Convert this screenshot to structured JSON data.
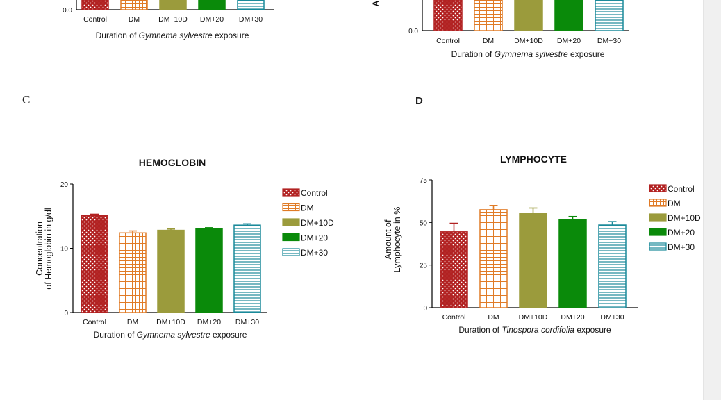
{
  "panels": {
    "c_label": "C",
    "d_label": "D"
  },
  "chart_data": [
    {
      "id": "top-left",
      "type": "bar",
      "title": "",
      "xlabel": "Duration of ",
      "xlabel_italic": "Gymnema sylvestre",
      "xlabel_suffix": " exposure",
      "ylabel": "",
      "ylim": [
        0,
        null
      ],
      "yticks": [
        "0.0"
      ],
      "categories": [
        "Control",
        "DM",
        "DM+10D",
        "DM+20",
        "DM+30"
      ],
      "values": [
        null,
        null,
        null,
        null,
        null
      ]
    },
    {
      "id": "top-right",
      "type": "bar",
      "title": "",
      "xlabel": "Duration of ",
      "xlabel_italic": "Gymnema sylvestre",
      "xlabel_suffix": " exposure",
      "ylabel": "A",
      "yticks": [
        "0.0"
      ],
      "categories": [
        "Control",
        "DM",
        "DM+10D",
        "DM+20",
        "DM+30"
      ],
      "values": [
        null,
        null,
        null,
        null,
        null
      ]
    },
    {
      "id": "hemoglobin",
      "type": "bar",
      "title": "HEMOGLOBIN",
      "xlabel": "Duration of ",
      "xlabel_italic": "Gymnema sylvestre",
      "xlabel_suffix": " exposure",
      "ylabel": "Concentration of Hemoglobin in g/dl",
      "ylim": [
        0,
        20
      ],
      "yticks": [
        "0",
        "10",
        "20"
      ],
      "categories": [
        "Control",
        "DM",
        "DM+10D",
        "DM+20",
        "DM+30"
      ],
      "values": [
        15.1,
        12.4,
        12.8,
        13.0,
        13.6
      ],
      "errors": [
        0.2,
        0.3,
        0.2,
        0.2,
        0.2
      ],
      "legend": [
        "Control",
        "DM",
        "DM+10D",
        "DM+20",
        "DM+30"
      ]
    },
    {
      "id": "lymphocyte",
      "type": "bar",
      "title": "LYMPHOCYTE",
      "xlabel": "Duration of ",
      "xlabel_italic": "Tinospora cordifolia",
      "xlabel_suffix": " exposure",
      "ylabel": "Amount of Lymphocyte in %",
      "ylim": [
        0,
        75
      ],
      "yticks": [
        "0",
        "25",
        "50",
        "75"
      ],
      "categories": [
        "Control",
        "DM",
        "DM+10D",
        "DM+20",
        "DM+30"
      ],
      "values": [
        44.5,
        57.5,
        55.5,
        51.5,
        48.5
      ],
      "errors": [
        5,
        2.5,
        3,
        2,
        2
      ],
      "legend": [
        "Control",
        "DM",
        "DM+10D",
        "DM+20",
        "DM+30"
      ]
    }
  ],
  "series_colors": {
    "Control": "#b22222",
    "DM": "#e07b26",
    "DM+10D": "#9b9b3c",
    "DM+20": "#0a8a0a",
    "DM+30": "#1a8a9a"
  }
}
